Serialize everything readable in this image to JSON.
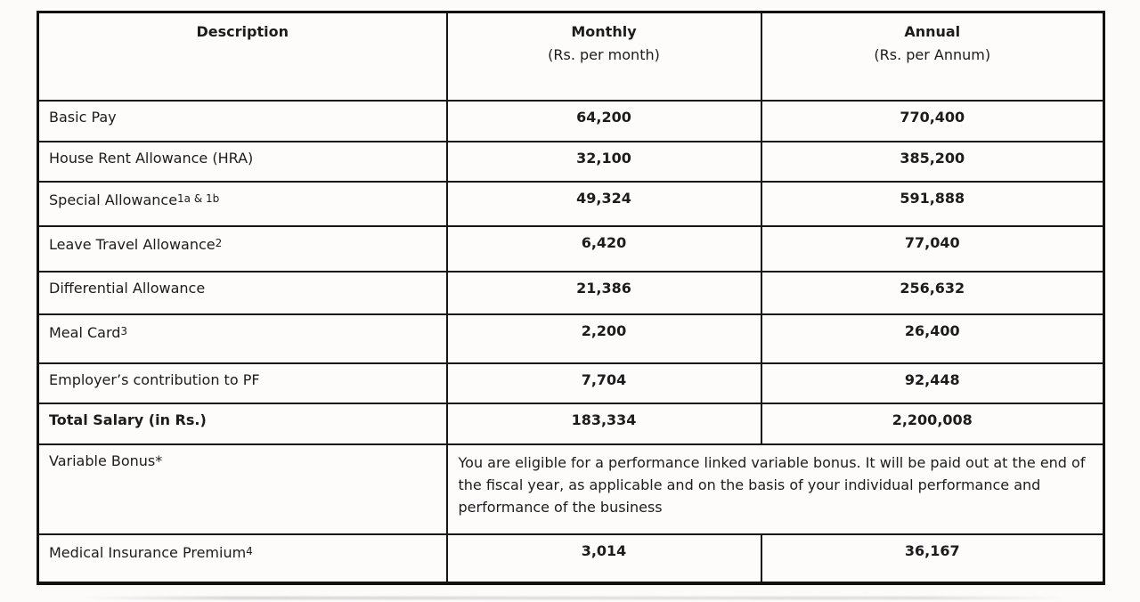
{
  "table": {
    "header": {
      "description": "Description",
      "monthly_title": "Monthly",
      "monthly_sub": "(Rs. per month)",
      "annual_title": "Annual",
      "annual_sub": "(Rs. per Annum)"
    },
    "rows": [
      {
        "label": "Basic Pay",
        "sup": "",
        "monthly": "64,200",
        "annual": "770,400"
      },
      {
        "label": "House Rent Allowance (HRA)",
        "sup": "",
        "monthly": "32,100",
        "annual": "385,200"
      },
      {
        "label": "Special Allowance",
        "sup": "1a & 1b",
        "monthly": "49,324",
        "annual": "591,888"
      },
      {
        "label": "Leave Travel Allowance",
        "sup": "2",
        "monthly": "6,420",
        "annual": "77,040"
      },
      {
        "label": "Differential Allowance",
        "sup": "",
        "monthly": "21,386",
        "annual": "256,632"
      },
      {
        "label": "Meal Card",
        "sup": "3",
        "monthly": "2,200",
        "annual": "26,400"
      },
      {
        "label": "Employer’s contribution to PF",
        "sup": "",
        "monthly": "7,704",
        "annual": "92,448"
      },
      {
        "label": "Total Salary (in Rs.)",
        "sup": "",
        "monthly": "183,334",
        "annual": "2,200,008"
      }
    ],
    "variable_bonus": {
      "label": "Variable Bonus*",
      "text": "You are eligible for a performance linked variable bonus. It will be paid out at the end of the fiscal year, as applicable and on the basis of your individual performance and performance of the business"
    },
    "medical": {
      "label": "Medical Insurance Premium",
      "sup": "4",
      "monthly": "3,014",
      "annual": "36,167"
    }
  }
}
